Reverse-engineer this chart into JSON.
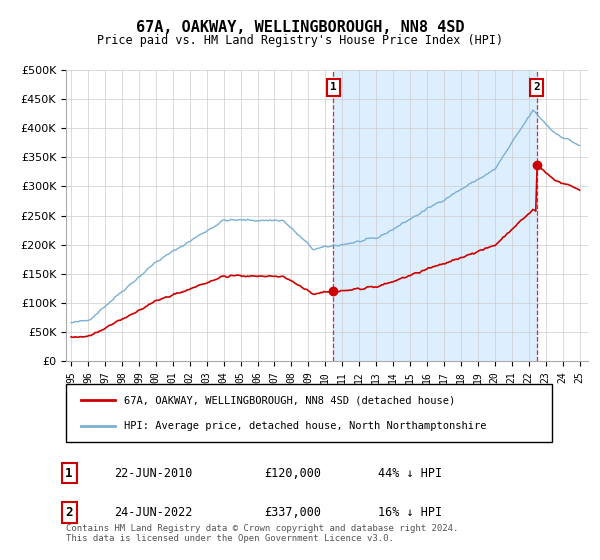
{
  "title": "67A, OAKWAY, WELLINGBOROUGH, NN8 4SD",
  "subtitle": "Price paid vs. HM Land Registry's House Price Index (HPI)",
  "hpi_label": "HPI: Average price, detached house, North Northamptonshire",
  "property_label": "67A, OAKWAY, WELLINGBOROUGH, NN8 4SD (detached house)",
  "point1_date": "22-JUN-2010",
  "point1_price": "£120,000",
  "point1_note": "44% ↓ HPI",
  "point2_date": "24-JUN-2022",
  "point2_price": "£337,000",
  "point2_note": "16% ↓ HPI",
  "footer": "Contains HM Land Registry data © Crown copyright and database right 2024.\nThis data is licensed under the Open Government Licence v3.0.",
  "ylim": [
    0,
    500000
  ],
  "yticks": [
    0,
    50000,
    100000,
    150000,
    200000,
    250000,
    300000,
    350000,
    400000,
    450000,
    500000
  ],
  "background_color": "#ffffff",
  "grid_color": "#cccccc",
  "vline_color": "#cc0000",
  "hpi_color": "#7ab0d4",
  "property_color": "#cc0000",
  "shade_color": "#ddeeff",
  "title_fontsize": 11,
  "subtitle_fontsize": 9
}
